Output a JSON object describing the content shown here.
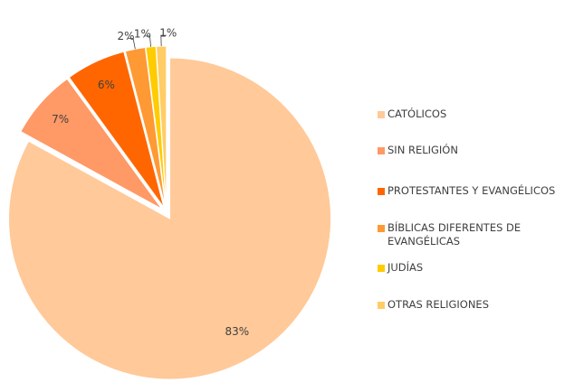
{
  "chart_data": {
    "type": "pie",
    "categories": [
      "CATÓLICOS",
      "SIN RELIGIÓN",
      "PROTESTANTES Y EVANGÉLICOS",
      "BÍBLICAS DIFERENTES DE EVANGÉLICAS",
      "JUDÍAS",
      "OTRAS RELIGIONES"
    ],
    "values": [
      83,
      7,
      6,
      2,
      1,
      1
    ],
    "value_labels": [
      "83%",
      "7%",
      "6%",
      "2%",
      "1%",
      "1%"
    ],
    "colors": [
      "#ffc999",
      "#ff9966",
      "#ff6600",
      "#ff9933",
      "#ffcc00",
      "#ffcc66"
    ],
    "legend": "right"
  }
}
